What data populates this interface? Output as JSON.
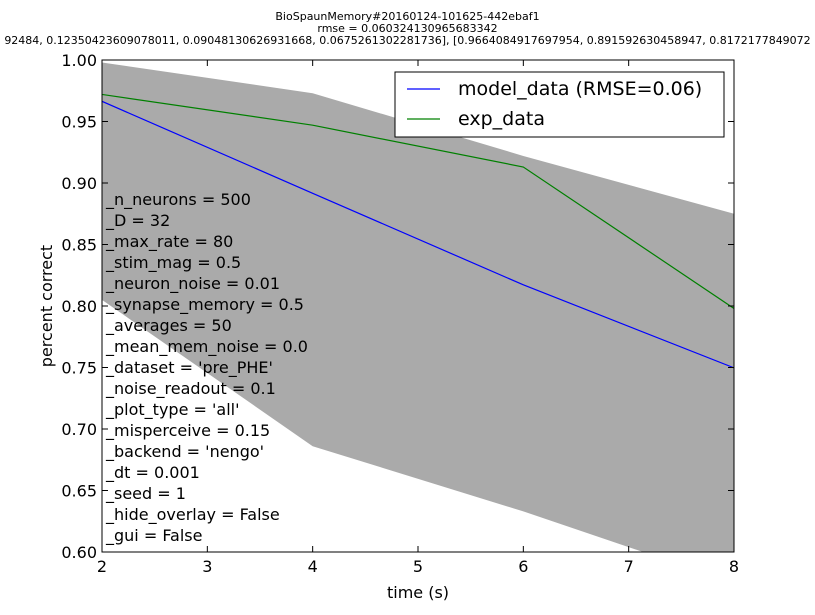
{
  "figure": {
    "title_lines": [
      "BioSpaunMemory#20160124-101625-442ebaf1",
      "rmse = 0.060324130965683342",
      "92484, 0.12350423609078011, 0.09048130626931668, 0.0675261302281736], [0.9664084917697954, 0.891592630458947, 0.8172177849072"
    ]
  },
  "chart_data": {
    "type": "line",
    "xlabel": "time (s)",
    "ylabel": "percent correct",
    "xlim": [
      2,
      8
    ],
    "ylim": [
      0.6,
      1.0
    ],
    "xticks": [
      2,
      3,
      4,
      5,
      6,
      7,
      8
    ],
    "yticks": [
      "0.60",
      "0.65",
      "0.70",
      "0.75",
      "0.80",
      "0.85",
      "0.90",
      "0.95",
      "1.00"
    ],
    "grid": false,
    "legend_position": "top-right",
    "x": [
      2,
      4,
      6,
      8
    ],
    "series": [
      {
        "name": "model_data (RMSE=0.06)",
        "color": "#0000ff",
        "values": [
          0.9664,
          0.8916,
          0.8172,
          0.7497
        ]
      },
      {
        "name": "exp_data",
        "color": "#008000",
        "values": [
          0.972,
          0.947,
          0.913,
          0.798
        ]
      }
    ],
    "band": {
      "color": "#aaaaaa",
      "upper": [
        0.998,
        0.973,
        0.922,
        0.875
      ],
      "lower": [
        0.805,
        0.686,
        0.633,
        0.575
      ]
    },
    "annotations": [
      "_n_neurons = 500",
      "_D = 32",
      "_max_rate = 80",
      "_stim_mag = 0.5",
      "_neuron_noise = 0.01",
      "_synapse_memory = 0.5",
      "_averages = 50",
      "_mean_mem_noise = 0.0",
      "_dataset = 'pre_PHE'",
      "_noise_readout = 0.1",
      "_plot_type = 'all'",
      "_misperceive = 0.15",
      "_backend = 'nengo'",
      "_dt = 0.001",
      "_seed = 1",
      "_hide_overlay = False",
      "_gui = False"
    ]
  }
}
